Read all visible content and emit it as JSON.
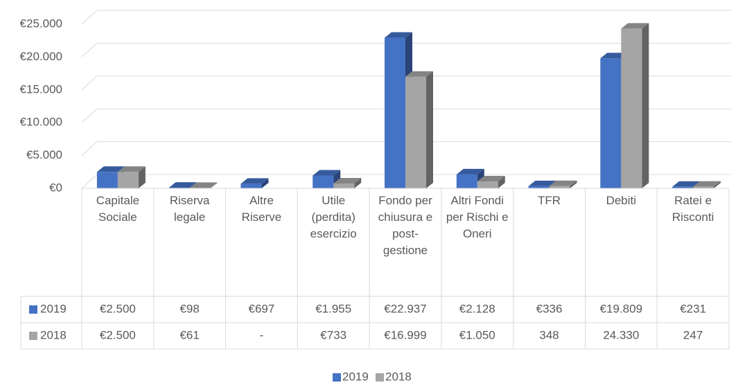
{
  "chart_data": {
    "type": "bar3d",
    "categories": [
      "Capitale Sociale",
      "Riserva legale",
      "Altre Riserve",
      "Utile (perdita) esercizio",
      "Fondo per chiusura e post-gestione",
      "Altri Fondi per Rischi e Oneri",
      "TFR",
      "Debiti",
      "Ratei e Risconti"
    ],
    "series": [
      {
        "name": "2019",
        "color": "#4472c4",
        "values": [
          2500,
          98,
          697,
          1955,
          22937,
          2128,
          336,
          19809,
          231
        ],
        "value_labels": [
          "€2.500",
          "€98",
          "€697",
          "€1.955",
          "€22.937",
          "€2.128",
          "€336",
          "€19.809",
          "€231"
        ]
      },
      {
        "name": "2018",
        "color": "#a5a5a5",
        "values": [
          2500,
          61,
          null,
          733,
          16999,
          1050,
          348,
          24330,
          247
        ],
        "value_labels": [
          "€2.500",
          "€61",
          "-",
          "€733",
          "€16.999",
          "€1.050",
          "348",
          "24.330",
          "247"
        ]
      }
    ],
    "ylim": [
      0,
      25000
    ],
    "yticks": [
      {
        "value": 0,
        "label": "€0"
      },
      {
        "value": 5000,
        "label": "€5.000"
      },
      {
        "value": 10000,
        "label": "€10.000"
      },
      {
        "value": 15000,
        "label": "€15.000"
      },
      {
        "value": 20000,
        "label": "€20.000"
      },
      {
        "value": 25000,
        "label": "€25.000"
      }
    ],
    "grid": true,
    "legend": "bottom",
    "data_table": true
  }
}
